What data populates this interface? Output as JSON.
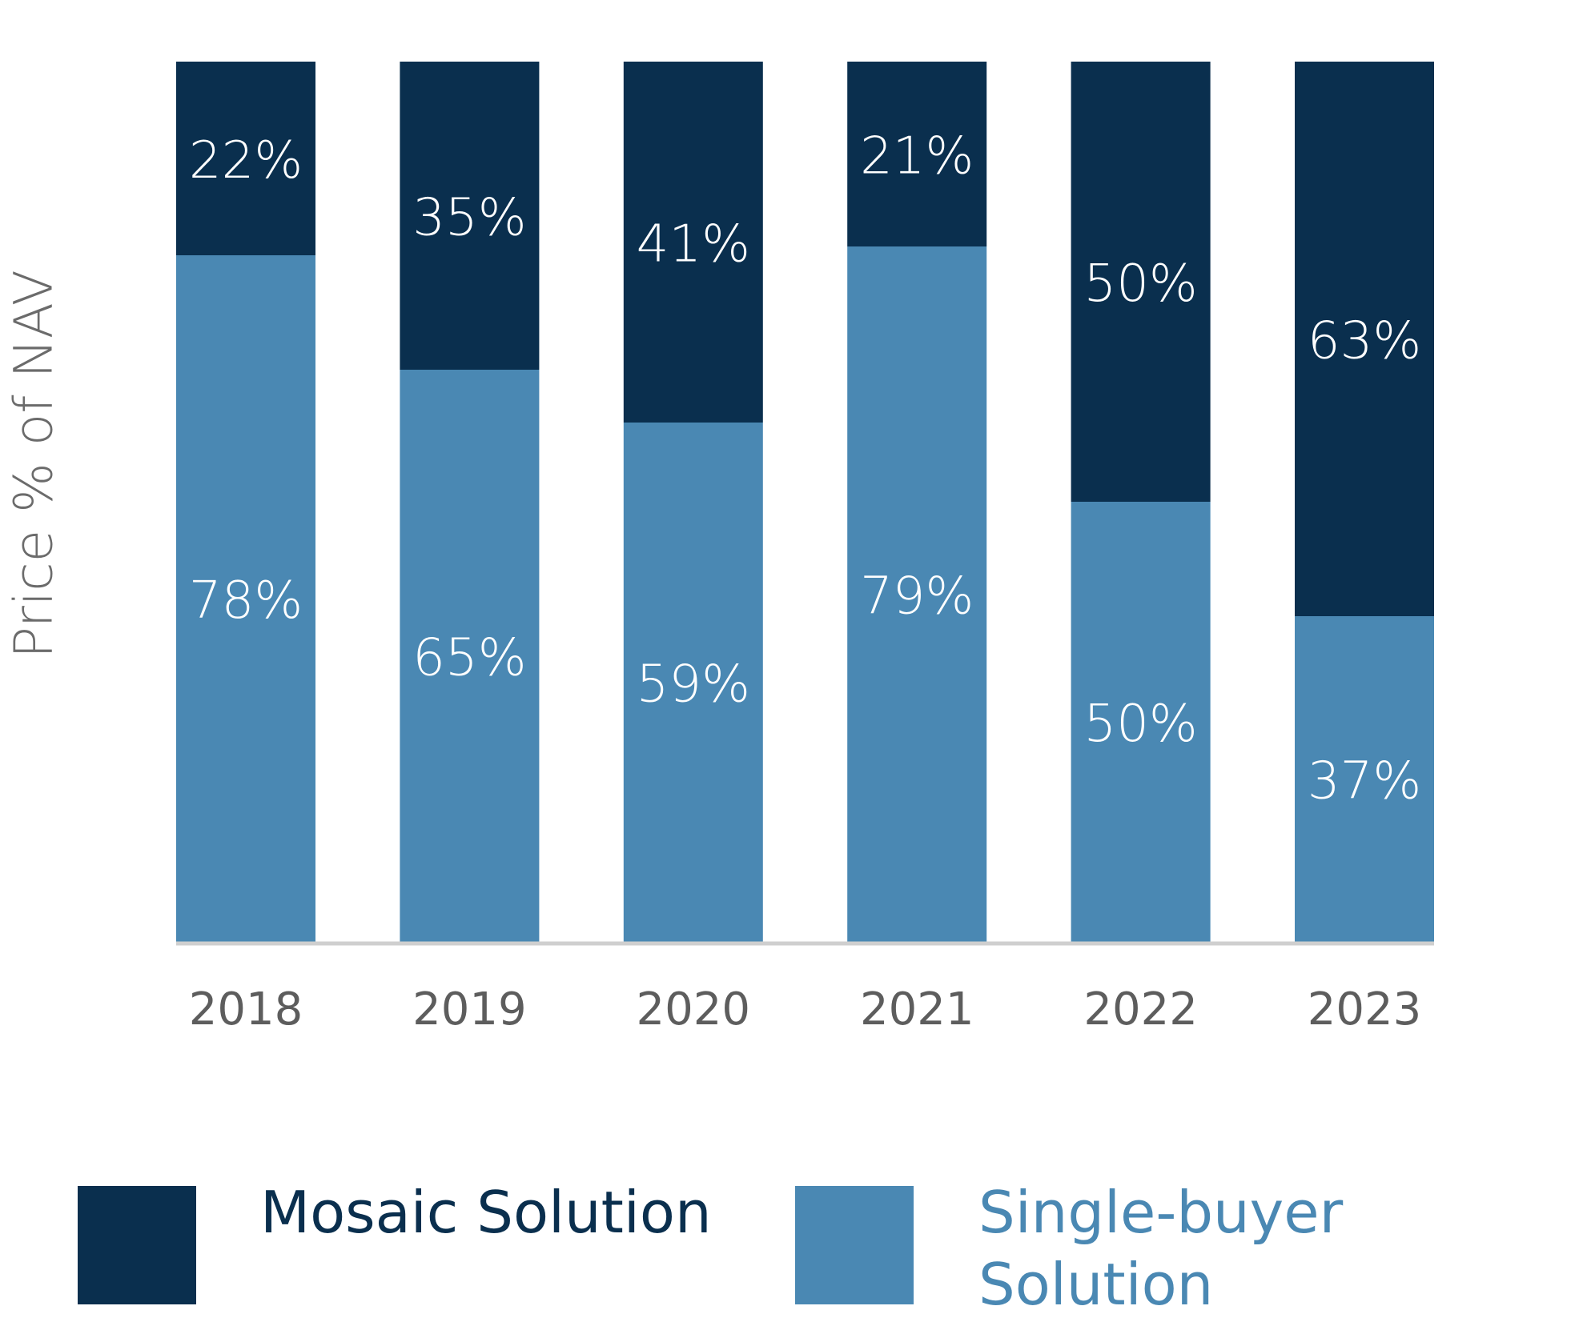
{
  "colors": {
    "mosaic": "#0a2f4e",
    "single": "#4a88b3",
    "axis": "#cfcfcf",
    "tick_text": "#5d5d5d",
    "bar_text": "#ffffff"
  },
  "chart_data": {
    "type": "bar",
    "stacked": true,
    "ylabel": "Price % of NAV",
    "categories": [
      "2018",
      "2019",
      "2020",
      "2021",
      "2022",
      "2023"
    ],
    "series": [
      {
        "name": "Single-buyer Solution",
        "values": [
          78,
          65,
          59,
          79,
          50,
          37
        ],
        "labels": [
          "78%",
          "65%",
          "59%",
          "79%",
          "50%",
          "37%"
        ]
      },
      {
        "name": "Mosaic Solution",
        "values": [
          22,
          35,
          41,
          21,
          50,
          63
        ],
        "labels": [
          "22%",
          "35%",
          "41%",
          "21%",
          "50%",
          "63%"
        ]
      }
    ],
    "ylim": [
      0,
      100
    ],
    "grid": false,
    "legend": "bottom"
  },
  "legend": {
    "mosaic_label": "Mosaic Solution",
    "single_label": "Single-buyer Solution"
  }
}
